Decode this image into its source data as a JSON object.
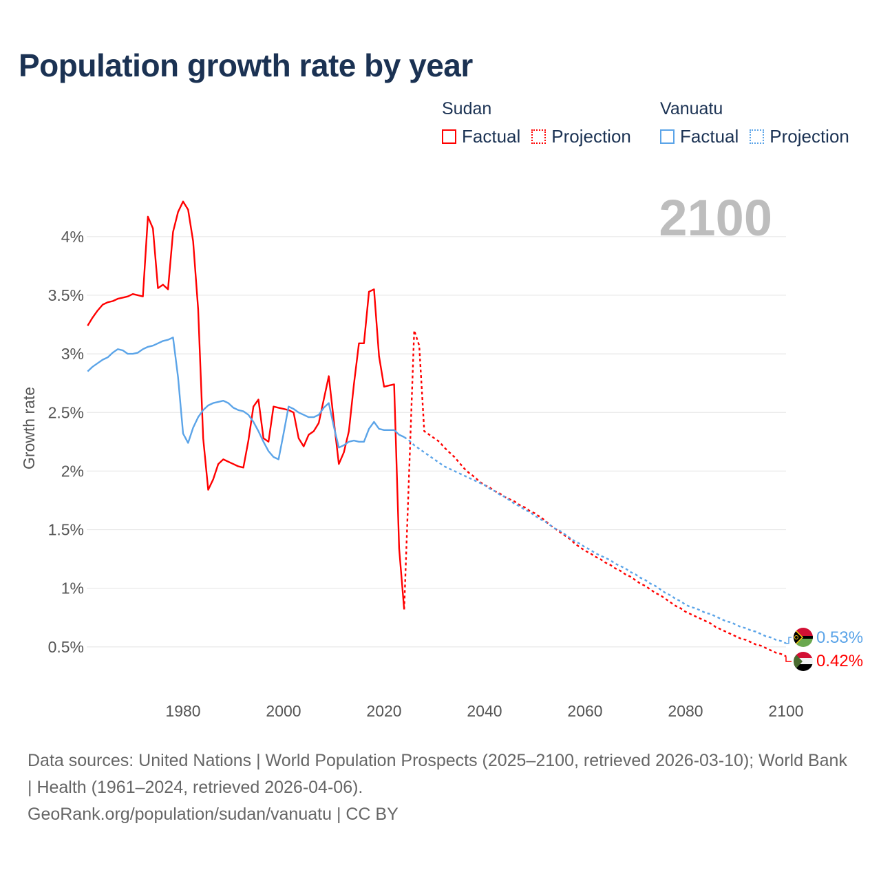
{
  "title": "Population growth rate by year",
  "legend": {
    "groups": [
      {
        "name": "Sudan",
        "color": "#ff0000",
        "factual_label": "Factual",
        "projection_label": "Projection"
      },
      {
        "name": "Vanuatu",
        "color": "#5ba4e8",
        "factual_label": "Factual",
        "projection_label": "Projection"
      }
    ]
  },
  "footer": {
    "sources": "Data sources: United Nations | World Population Prospects (2025–2100, retrieved 2026-03-10); World Bank | Health (1961–2024, retrieved 2026-04-06).",
    "credit": "GeoRank.org/population/sudan/vanuatu | CC BY"
  },
  "chart_data": {
    "type": "line",
    "title": "Population growth rate by year",
    "current_year_label": "2100",
    "xlabel": "",
    "ylabel": "Growth rate",
    "xlim": [
      1961,
      2100
    ],
    "ylim": [
      0.0,
      4.45
    ],
    "x_ticks": [
      "1980",
      "2000",
      "2020",
      "2040",
      "2060",
      "2080",
      "2100"
    ],
    "y_ticks": [
      "0.5%",
      "1%",
      "1.5%",
      "2%",
      "2.5%",
      "3%",
      "3.5%",
      "4%"
    ],
    "grid": true,
    "legend_position": "top-right",
    "series": [
      {
        "name": "Sudan",
        "color": "#ff0000",
        "end_label": "0.42%",
        "factual": {
          "start_year": 1961,
          "values": [
            3.24,
            3.31,
            3.37,
            3.42,
            3.44,
            3.45,
            3.47,
            3.48,
            3.49,
            3.51,
            3.5,
            3.49,
            4.17,
            4.07,
            3.56,
            3.59,
            3.55,
            4.04,
            4.21,
            4.3,
            4.23,
            3.96,
            3.38,
            2.28,
            1.84,
            1.93,
            2.06,
            2.1,
            2.08,
            2.06,
            2.04,
            2.03,
            2.26,
            2.55,
            2.61,
            2.28,
            2.25,
            2.55,
            2.54,
            2.53,
            2.52,
            2.5,
            2.28,
            2.21,
            2.31,
            2.34,
            2.41,
            2.61,
            2.81,
            2.43,
            2.06,
            2.16,
            2.34,
            2.74,
            3.09,
            3.09,
            3.53,
            3.55,
            2.98,
            2.72,
            2.73,
            2.74,
            1.34,
            0.82
          ]
        },
        "projection": {
          "start_year": 2024,
          "values": [
            0.82,
            2.0,
            3.2,
            3.07,
            2.34,
            2.31,
            2.28,
            2.25,
            2.2,
            2.16,
            2.12,
            2.07,
            2.02,
            1.98,
            1.95,
            1.91,
            1.88,
            1.86,
            1.83,
            1.81,
            1.78,
            1.76,
            1.74,
            1.71,
            1.69,
            1.66,
            1.64,
            1.61,
            1.58,
            1.54,
            1.51,
            1.48,
            1.45,
            1.42,
            1.38,
            1.35,
            1.32,
            1.3,
            1.27,
            1.25,
            1.22,
            1.2,
            1.17,
            1.15,
            1.12,
            1.1,
            1.07,
            1.04,
            1.02,
            0.99,
            0.96,
            0.94,
            0.91,
            0.88,
            0.85,
            0.83,
            0.8,
            0.78,
            0.76,
            0.74,
            0.72,
            0.7,
            0.67,
            0.65,
            0.63,
            0.61,
            0.59,
            0.57,
            0.56,
            0.54,
            0.52,
            0.51,
            0.49,
            0.47,
            0.45,
            0.44,
            0.42
          ]
        }
      },
      {
        "name": "Vanuatu",
        "color": "#5ba4e8",
        "end_label": "0.53%",
        "factual": {
          "start_year": 1961,
          "values": [
            2.85,
            2.89,
            2.92,
            2.95,
            2.97,
            3.01,
            3.04,
            3.03,
            3.0,
            3.0,
            3.01,
            3.04,
            3.06,
            3.07,
            3.09,
            3.11,
            3.12,
            3.14,
            2.8,
            2.32,
            2.24,
            2.37,
            2.46,
            2.52,
            2.56,
            2.58,
            2.59,
            2.6,
            2.58,
            2.54,
            2.52,
            2.51,
            2.48,
            2.42,
            2.34,
            2.25,
            2.17,
            2.12,
            2.1,
            2.32,
            2.55,
            2.53,
            2.5,
            2.48,
            2.46,
            2.46,
            2.48,
            2.54,
            2.58,
            2.38,
            2.2,
            2.22,
            2.25,
            2.26,
            2.25,
            2.25,
            2.36,
            2.42,
            2.36,
            2.35,
            2.35,
            2.35,
            2.31,
            2.29
          ]
        },
        "projection": {
          "start_year": 2024,
          "values": [
            2.29,
            2.26,
            2.22,
            2.19,
            2.16,
            2.13,
            2.1,
            2.07,
            2.04,
            2.02,
            2.0,
            1.98,
            1.96,
            1.94,
            1.92,
            1.9,
            1.88,
            1.85,
            1.83,
            1.8,
            1.78,
            1.75,
            1.72,
            1.7,
            1.67,
            1.65,
            1.62,
            1.59,
            1.57,
            1.54,
            1.51,
            1.49,
            1.46,
            1.43,
            1.4,
            1.38,
            1.35,
            1.33,
            1.3,
            1.28,
            1.26,
            1.24,
            1.21,
            1.19,
            1.17,
            1.14,
            1.12,
            1.09,
            1.07,
            1.04,
            1.02,
            0.99,
            0.96,
            0.94,
            0.91,
            0.89,
            0.86,
            0.84,
            0.83,
            0.81,
            0.79,
            0.78,
            0.76,
            0.74,
            0.72,
            0.71,
            0.69,
            0.67,
            0.66,
            0.64,
            0.63,
            0.61,
            0.59,
            0.58,
            0.56,
            0.55,
            0.53
          ]
        }
      }
    ]
  }
}
